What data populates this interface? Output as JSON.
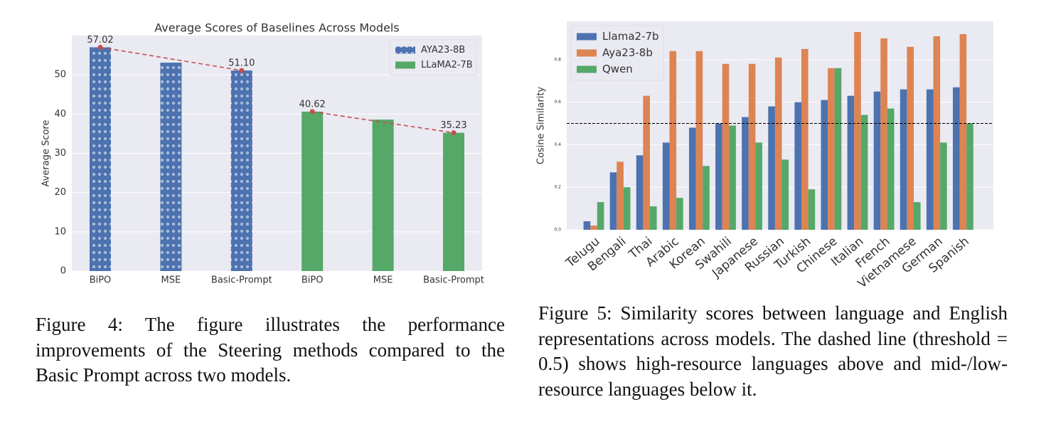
{
  "chart_data": [
    {
      "type": "bar",
      "title": "Average Scores of Baselines Across Models",
      "ylabel": "Average Score",
      "categories": [
        "BiPO",
        "MSE",
        "Basic-Prompt",
        "BiPO",
        "MSE",
        "Basic-Prompt"
      ],
      "series": [
        {
          "name": "AYA23-8B",
          "color": "#4c72b0",
          "hatch": "dots",
          "values": [
            57.02,
            53.1,
            51.1,
            null,
            null,
            null
          ],
          "value_labels": [
            "57.02",
            null,
            "51.10",
            null,
            null,
            null
          ]
        },
        {
          "name": "LLaMA2-7B",
          "color": "#55a868",
          "values": [
            null,
            null,
            null,
            40.62,
            38.6,
            35.23
          ],
          "value_labels": [
            null,
            null,
            null,
            "40.62",
            null,
            "35.23"
          ]
        }
      ],
      "ylim": [
        0,
        60
      ],
      "yticks": [
        0,
        10,
        20,
        30,
        40,
        50
      ],
      "grid": true,
      "legend": "upper right",
      "trend_color": "#c44e52",
      "caption": "Figure 4: The figure illustrates the performance improvements of the Steering methods compared to the Basic Prompt across two models."
    },
    {
      "type": "bar",
      "ylabel": "Cosine Similarity",
      "categories": [
        "Telugu",
        "Bengali",
        "Thai",
        "Arabic",
        "Korean",
        "Swahili",
        "Japanese",
        "Russian",
        "Turkish",
        "Chinese",
        "Italian",
        "French",
        "Vietnamese",
        "German",
        "Spanish"
      ],
      "series": [
        {
          "name": "Llama2-7b",
          "color": "#4c72b0",
          "values": [
            0.04,
            0.27,
            0.35,
            0.41,
            0.48,
            0.5,
            0.53,
            0.58,
            0.6,
            0.61,
            0.63,
            0.65,
            0.66,
            0.66,
            0.67
          ]
        },
        {
          "name": "Aya23-8b",
          "color": "#dd8452",
          "values": [
            0.02,
            0.32,
            0.63,
            0.84,
            0.84,
            0.78,
            0.78,
            0.81,
            0.85,
            0.76,
            0.93,
            0.9,
            0.86,
            0.91,
            0.92
          ]
        },
        {
          "name": "Qwen",
          "color": "#55a868",
          "values": [
            0.13,
            0.2,
            0.11,
            0.15,
            0.3,
            0.49,
            0.41,
            0.33,
            0.19,
            0.76,
            0.54,
            0.57,
            0.13,
            0.41,
            0.5
          ]
        }
      ],
      "ylim": [
        0,
        0.98
      ],
      "yticks": [
        {
          "value": 0,
          "label": "0.0"
        },
        0.2,
        0.4,
        0.6,
        0.8
      ],
      "grid": true,
      "legend": "upper left",
      "hline": 0.5,
      "hline_color": "#000000",
      "caption": "Figure 5: Similarity scores between language and English representations across models. The dashed line (threshold = 0.5) shows high-resource languages above and mid-/low-resource languages below it."
    }
  ]
}
